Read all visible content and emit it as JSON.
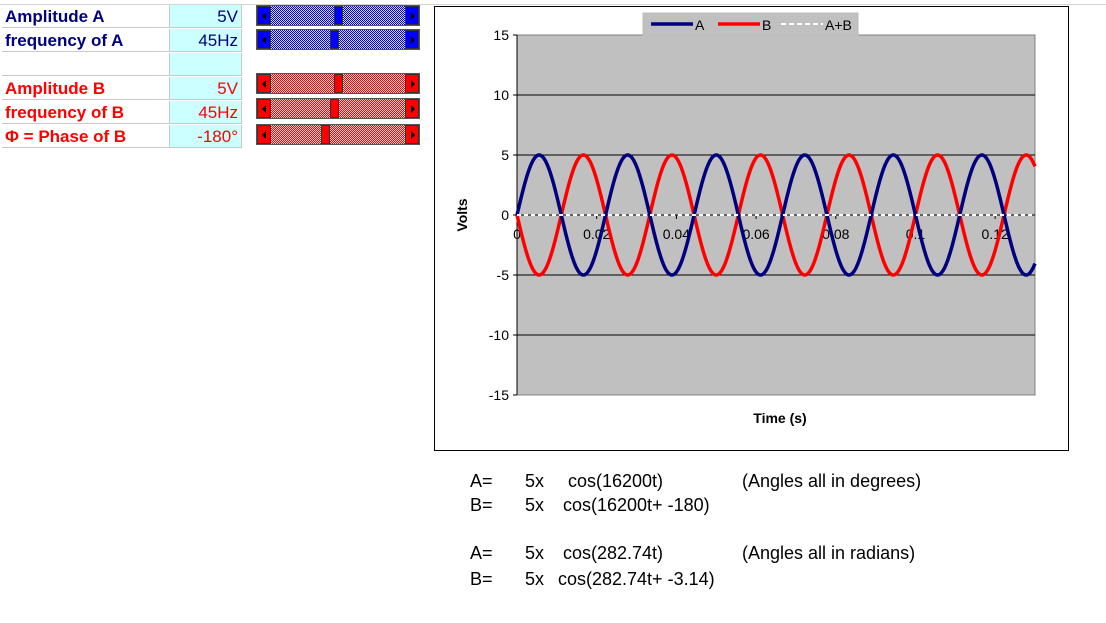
{
  "controls": [
    {
      "label": "Amplitude A",
      "value": "5V",
      "color": "blue",
      "slider_position": 0.5
    },
    {
      "label": "frequency of A",
      "value": "45Hz",
      "color": "blue",
      "slider_position": 0.47
    },
    {
      "label": "Amplitude B",
      "value": "5V",
      "color": "red",
      "slider_position": 0.5
    },
    {
      "label": "frequency of B",
      "value": "45Hz",
      "color": "red",
      "slider_position": 0.47
    },
    {
      "label": "Φ = Phase of B",
      "value": "-180°",
      "color": "red",
      "slider_position": 0.4
    }
  ],
  "colors": {
    "series_a": "#00007e",
    "series_b": "#ff0000",
    "plot_bg": "#c0c0c0",
    "cell_bg": "#ccffff"
  },
  "chart_data": {
    "type": "line",
    "xlabel": "Time (s)",
    "ylabel": "Volts",
    "xlim": [
      0,
      0.13
    ],
    "ylim": [
      -15,
      15
    ],
    "x_ticks": [
      "0",
      "0.02",
      "0.04",
      "0.06",
      "0.08",
      "0.1",
      "0.12"
    ],
    "x_tick_values": [
      0,
      0.02,
      0.04,
      0.06,
      0.08,
      0.1,
      0.12
    ],
    "y_ticks": [
      "15",
      "10",
      "5",
      "0",
      "-5",
      "-10",
      "-15"
    ],
    "y_tick_values": [
      15,
      10,
      5,
      0,
      -5,
      -10,
      -15
    ],
    "grid": true,
    "legend_position": "top-right",
    "series": [
      {
        "name": "A",
        "amplitude": 5,
        "frequency_hz": 45,
        "phase_deg": 0,
        "color": "#00007e",
        "style": "solid"
      },
      {
        "name": "B",
        "amplitude": 5,
        "frequency_hz": 45,
        "phase_deg": -180,
        "color": "#ff0000",
        "style": "solid"
      },
      {
        "name": "A+B",
        "amplitude": 0,
        "frequency_hz": 45,
        "phase_deg": 0,
        "color": "#ffffff",
        "style": "dashed"
      }
    ]
  },
  "formulas": {
    "degrees": {
      "a_label": "A=",
      "a_amp": "5x",
      "a_expr": "cos(16200t)",
      "note": "(Angles all in degrees)",
      "b_label": "B=",
      "b_amp": "5x",
      "b_expr": "cos(16200t+ -180)"
    },
    "radians": {
      "a_label": "A=",
      "a_amp": "5x",
      "a_expr": "cos(282.74t)",
      "note": "(Angles all in radians)",
      "b_label": "B=",
      "b_amp": "5x",
      "b_expr": "cos(282.74t+ -3.14)"
    }
  }
}
